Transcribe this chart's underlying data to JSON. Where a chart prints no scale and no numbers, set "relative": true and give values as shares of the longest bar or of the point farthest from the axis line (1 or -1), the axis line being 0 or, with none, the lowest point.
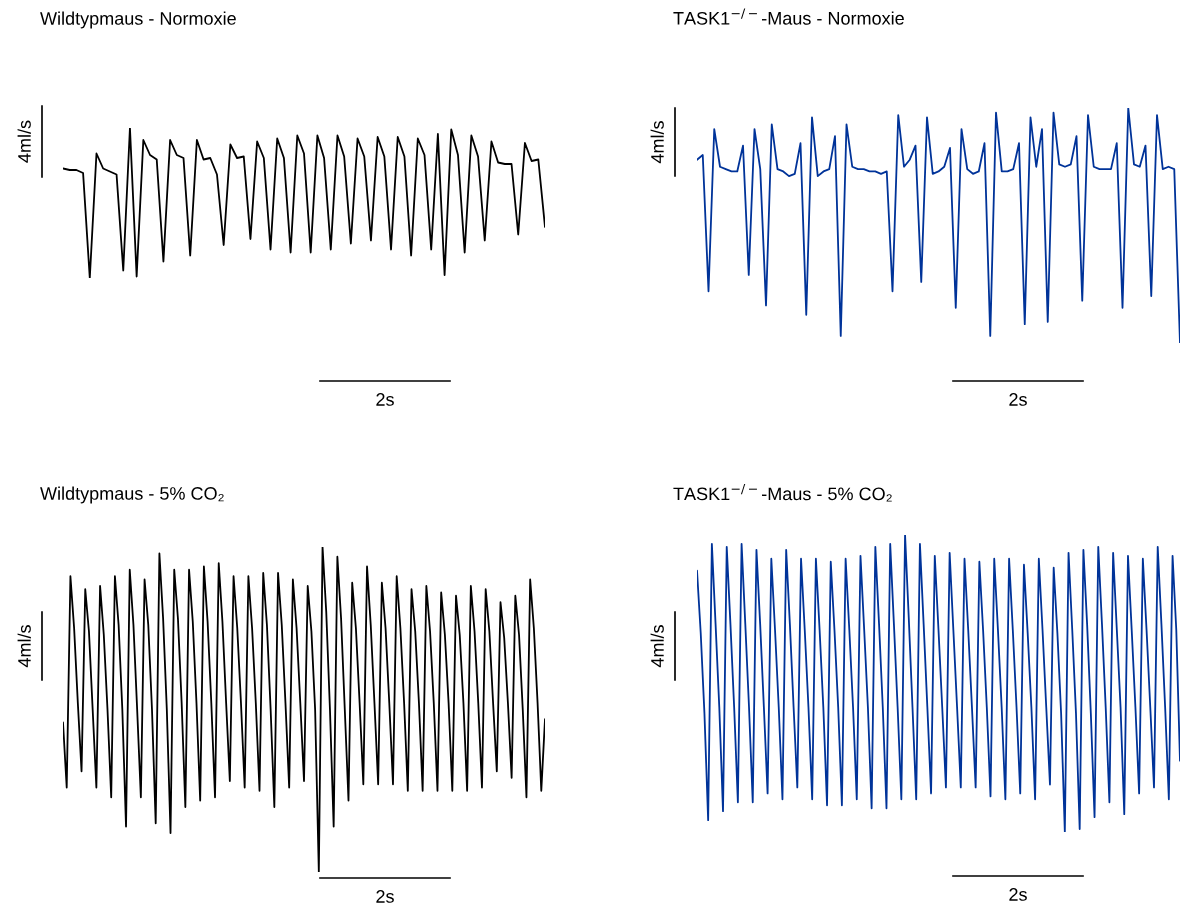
{
  "chart_data": [
    {
      "type": "line",
      "title": "Wildtypmaus - Normoxie",
      "relative": true,
      "annotations": [
        "4ml/s",
        "2s"
      ],
      "categories": [
        null,
        null,
        null,
        null,
        null,
        null,
        null,
        null,
        null,
        null,
        null,
        null,
        null,
        null,
        null,
        null,
        null,
        null,
        null,
        null,
        null,
        null,
        null,
        null,
        null,
        null,
        null,
        null,
        null,
        null,
        null,
        null,
        null,
        null,
        null,
        null,
        null,
        null,
        null,
        null,
        null,
        null,
        null,
        null,
        null,
        null,
        null,
        null,
        null,
        null,
        null,
        null,
        null,
        null,
        null,
        null,
        null,
        null,
        null,
        null,
        null,
        null,
        null,
        null,
        null,
        null,
        null,
        null,
        null,
        null,
        null,
        null,
        null
      ],
      "series": [
        {
          "color": "#000000",
          "values": [
            0.73,
            0.72,
            0.72,
            0.7,
            0.0,
            0.83,
            0.73,
            0.71,
            0.69,
            0.05,
            1.0,
            0.01,
            0.92,
            0.82,
            0.79,
            0.11,
            0.92,
            0.82,
            0.8,
            0.15,
            0.92,
            0.79,
            0.8,
            0.69,
            0.22,
            0.89,
            0.8,
            0.81,
            0.26,
            0.91,
            0.8,
            0.19,
            0.93,
            0.8,
            0.17,
            0.95,
            0.83,
            0.17,
            0.95,
            0.8,
            0.19,
            0.95,
            0.81,
            0.23,
            0.93,
            0.81,
            0.25,
            0.94,
            0.81,
            0.19,
            0.94,
            0.81,
            0.15,
            0.93,
            0.82,
            0.19,
            0.96,
            0.02,
            0.99,
            0.82,
            0.17,
            0.95,
            0.81,
            0.25,
            0.91,
            0.77,
            0.76,
            0.76,
            0.29,
            0.9,
            0.78,
            0.79,
            0.34
          ]
        }
      ]
    },
    {
      "type": "line",
      "title": "TASK1$^{−/−}$-Maus - Normoxie",
      "relative": true,
      "annotations": [
        "4ml/s",
        "2s"
      ],
      "categories": [
        null,
        null,
        null,
        null,
        null,
        null,
        null,
        null,
        null,
        null,
        null,
        null,
        null,
        null,
        null,
        null,
        null,
        null,
        null,
        null,
        null,
        null,
        null,
        null,
        null,
        null,
        null,
        null,
        null,
        null,
        null,
        null,
        null,
        null,
        null,
        null,
        null,
        null,
        null,
        null,
        null,
        null,
        null,
        null,
        null,
        null,
        null,
        null,
        null,
        null,
        null,
        null,
        null,
        null,
        null,
        null,
        null,
        null,
        null,
        null,
        null,
        null,
        null,
        null,
        null,
        null,
        null,
        null,
        null,
        null,
        null,
        null,
        null,
        null,
        null,
        null,
        null,
        null,
        null,
        null,
        null,
        null,
        null,
        null,
        null
      ],
      "series": [
        {
          "color": "#003399",
          "values": [
            0.78,
            0.8,
            0.22,
            0.91,
            0.75,
            0.74,
            0.73,
            0.73,
            0.84,
            0.29,
            0.91,
            0.74,
            0.16,
            0.93,
            0.74,
            0.73,
            0.71,
            0.72,
            0.85,
            0.12,
            0.96,
            0.71,
            0.73,
            0.74,
            0.88,
            0.03,
            0.93,
            0.75,
            0.74,
            0.74,
            0.73,
            0.73,
            0.72,
            0.73,
            0.22,
            0.97,
            0.75,
            0.78,
            0.84,
            0.26,
            0.96,
            0.72,
            0.73,
            0.75,
            0.83,
            0.15,
            0.91,
            0.74,
            0.72,
            0.73,
            0.85,
            0.03,
            0.98,
            0.73,
            0.73,
            0.74,
            0.85,
            0.08,
            0.96,
            0.75,
            0.91,
            0.09,
            0.98,
            0.76,
            0.75,
            0.76,
            0.88,
            0.18,
            0.97,
            0.75,
            0.74,
            0.74,
            0.74,
            0.85,
            0.15,
            1.0,
            0.76,
            0.75,
            0.84,
            0.2,
            0.97,
            0.74,
            0.75,
            0.74,
            0.0
          ]
        }
      ]
    },
    {
      "type": "line",
      "title": "Wildtypmaus - 5% CO₂",
      "relative": true,
      "annotations": [
        "4ml/s",
        "2s"
      ],
      "categories": [
        null,
        null,
        null,
        null,
        null,
        null,
        null,
        null,
        null,
        null,
        null,
        null,
        null,
        null,
        null,
        null,
        null,
        null,
        null,
        null,
        null,
        null,
        null,
        null,
        null,
        null,
        null,
        null,
        null,
        null,
        null,
        null,
        null,
        null,
        null,
        null,
        null,
        null,
        null,
        null,
        null,
        null,
        null,
        null,
        null,
        null,
        null,
        null,
        null,
        null,
        null,
        null,
        null,
        null,
        null,
        null,
        null,
        null,
        null,
        null,
        null,
        null,
        null,
        null,
        null,
        null,
        null,
        null,
        null,
        null,
        null,
        null,
        null,
        null,
        null,
        null,
        null,
        null,
        null,
        null,
        null,
        null,
        null,
        null,
        null,
        null,
        null,
        null,
        null,
        null,
        null,
        null,
        null,
        null,
        null,
        null,
        null,
        null,
        null,
        null,
        null,
        null,
        null,
        null,
        null,
        null,
        null,
        null,
        null,
        null,
        null,
        null,
        null,
        null,
        null,
        null,
        null,
        null,
        null,
        null,
        null,
        null,
        null,
        null,
        null,
        null,
        null,
        null,
        null,
        null,
        null
      ],
      "series": [
        {
          "color": "#000000",
          "values": [
            0.46,
            0.26,
            0.91,
            0.75,
            0.52,
            0.31,
            0.87,
            0.74,
            0.5,
            0.26,
            0.88,
            0.73,
            0.5,
            0.23,
            0.91,
            0.76,
            0.5,
            0.14,
            0.93,
            0.76,
            0.5,
            0.23,
            0.9,
            0.76,
            0.5,
            0.15,
            0.98,
            0.78,
            0.5,
            0.12,
            0.93,
            0.78,
            0.52,
            0.2,
            0.93,
            0.77,
            0.52,
            0.22,
            0.94,
            0.77,
            0.52,
            0.23,
            0.95,
            0.77,
            0.52,
            0.28,
            0.91,
            0.75,
            0.52,
            0.26,
            0.91,
            0.75,
            0.52,
            0.25,
            0.92,
            0.76,
            0.5,
            0.2,
            0.92,
            0.76,
            0.52,
            0.26,
            0.9,
            0.75,
            0.52,
            0.28,
            0.88,
            0.74,
            0.5,
            0.0,
            1.0,
            0.8,
            0.5,
            0.14,
            0.97,
            0.78,
            0.5,
            0.22,
            0.89,
            0.75,
            0.52,
            0.27,
            0.94,
            0.76,
            0.52,
            0.27,
            0.89,
            0.75,
            0.52,
            0.27,
            0.91,
            0.75,
            0.52,
            0.25,
            0.87,
            0.74,
            0.52,
            0.25,
            0.88,
            0.74,
            0.52,
            0.25,
            0.86,
            0.73,
            0.52,
            0.25,
            0.85,
            0.73,
            0.52,
            0.25,
            0.88,
            0.74,
            0.52,
            0.26,
            0.87,
            0.74,
            0.52,
            0.31,
            0.83,
            0.72,
            0.52,
            0.29,
            0.85,
            0.73,
            0.5,
            0.23,
            0.9,
            0.75,
            0.52,
            0.25,
            0.47
          ]
        }
      ]
    },
    {
      "type": "line",
      "title": "TASK1$^{−/−}$-Maus - 5% CO₂",
      "relative": true,
      "annotations": [
        "4ml/s",
        "2s"
      ],
      "categories": [
        null,
        null,
        null,
        null,
        null,
        null,
        null,
        null,
        null,
        null,
        null,
        null,
        null,
        null,
        null,
        null,
        null,
        null,
        null,
        null,
        null,
        null,
        null,
        null,
        null,
        null,
        null,
        null,
        null,
        null,
        null,
        null,
        null,
        null,
        null,
        null,
        null,
        null,
        null,
        null,
        null,
        null,
        null,
        null,
        null,
        null,
        null,
        null,
        null,
        null,
        null,
        null,
        null,
        null,
        null,
        null,
        null,
        null,
        null,
        null,
        null,
        null,
        null,
        null,
        null,
        null,
        null,
        null,
        null,
        null,
        null,
        null,
        null,
        null,
        null,
        null,
        null,
        null,
        null,
        null,
        null,
        null,
        null,
        null,
        null,
        null,
        null,
        null,
        null,
        null,
        null,
        null,
        null,
        null,
        null,
        null,
        null,
        null,
        null,
        null,
        null,
        null,
        null,
        null,
        null,
        null,
        null,
        null,
        null,
        null,
        null,
        null,
        null,
        null,
        null,
        null,
        null,
        null,
        null,
        null,
        null,
        null,
        null,
        null,
        null,
        null,
        null,
        null,
        null,
        null,
        null
      ],
      "series": [
        {
          "color": "#003399",
          "values": [
            0.88,
            0.67,
            0.4,
            0.04,
            0.97,
            0.7,
            0.42,
            0.07,
            0.96,
            0.7,
            0.42,
            0.1,
            0.97,
            0.7,
            0.42,
            0.1,
            0.95,
            0.7,
            0.42,
            0.13,
            0.92,
            0.68,
            0.42,
            0.11,
            0.95,
            0.7,
            0.42,
            0.15,
            0.92,
            0.68,
            0.42,
            0.11,
            0.92,
            0.68,
            0.42,
            0.09,
            0.91,
            0.68,
            0.42,
            0.09,
            0.92,
            0.68,
            0.42,
            0.11,
            0.93,
            0.68,
            0.42,
            0.08,
            0.96,
            0.7,
            0.42,
            0.08,
            0.97,
            0.7,
            0.42,
            0.11,
            1.0,
            0.72,
            0.42,
            0.11,
            0.97,
            0.7,
            0.42,
            0.13,
            0.93,
            0.68,
            0.42,
            0.15,
            0.94,
            0.68,
            0.42,
            0.15,
            0.92,
            0.68,
            0.42,
            0.15,
            0.91,
            0.68,
            0.42,
            0.12,
            0.92,
            0.68,
            0.42,
            0.11,
            0.92,
            0.68,
            0.42,
            0.13,
            0.9,
            0.67,
            0.42,
            0.11,
            0.92,
            0.68,
            0.42,
            0.16,
            0.89,
            0.67,
            0.4,
            0.0,
            0.94,
            0.68,
            0.4,
            0.01,
            0.95,
            0.7,
            0.4,
            0.05,
            0.96,
            0.7,
            0.42,
            0.1,
            0.94,
            0.68,
            0.42,
            0.06,
            0.93,
            0.68,
            0.42,
            0.13,
            0.92,
            0.68,
            0.42,
            0.15,
            0.96,
            0.7,
            0.42,
            0.11,
            0.93,
            0.68,
            0.24
          ]
        }
      ]
    }
  ]
}
